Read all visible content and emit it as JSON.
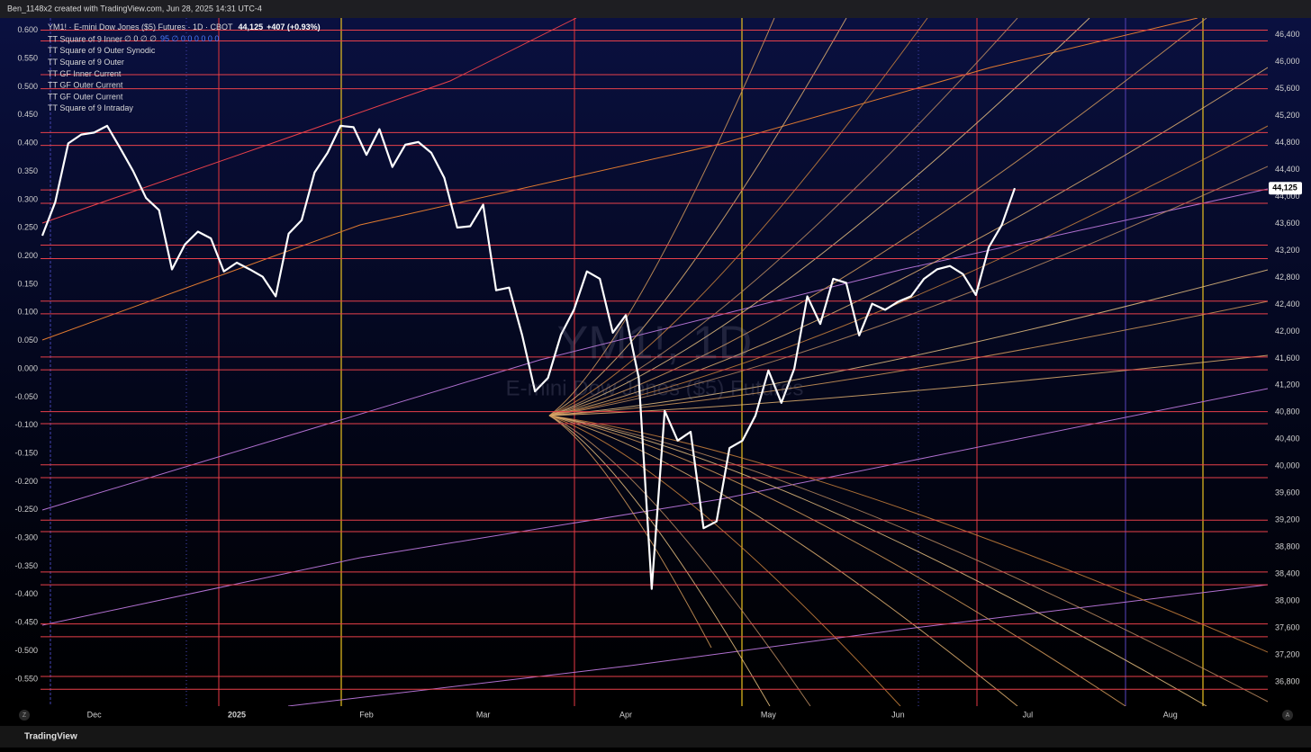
{
  "header": {
    "credit": "Ben_1148x2 created with TradingView.com, Jun 28, 2025 14:31 UTC-4"
  },
  "footer": {
    "brand": "TradingView",
    "left_button": "Z",
    "right_button": "A"
  },
  "chart_data": {
    "type": "line",
    "title": "YM1! · E-mini Dow Jones ($5) Futures · 1D · CBOT",
    "change": "+407 (+0.93%)",
    "last_price": {
      "value": 44125,
      "label": "44,125"
    },
    "watermark": "YM1!, 1D",
    "watermark_subtitle": "E-mini Dow Jones ($5) Futures",
    "indicators": [
      "TT Square of 9 Inner",
      "TT Square of 9 Outer Synodic",
      "TT Square of 9 Outer",
      "TT GF Inner Current",
      "TT GF Outer Current",
      "TT GF Outer Current",
      "TT Square of 9 Intraday"
    ],
    "indicator_values": [
      "∅ 0 ∅ ∅",
      "95 ∅ 0 0 0 0 0 0"
    ],
    "categories": [
      null,
      null,
      null,
      null,
      "Dec",
      null,
      null,
      null,
      null,
      null,
      null,
      null,
      null,
      null,
      null,
      "2025",
      null,
      null,
      null,
      null,
      null,
      null,
      null,
      null,
      null,
      "Feb",
      null,
      null,
      null,
      null,
      null,
      null,
      null,
      null,
      "Mar",
      null,
      null,
      null,
      null,
      null,
      null,
      null,
      null,
      null,
      null,
      "Apr",
      null,
      null,
      null,
      null,
      null,
      null,
      null,
      null,
      null,
      null,
      "May",
      null,
      null,
      null,
      null,
      null,
      null,
      null,
      null,
      null,
      "Jun",
      null,
      null,
      null,
      null,
      null,
      null,
      null,
      null,
      null,
      "Jul",
      null,
      null,
      null,
      null,
      null,
      null,
      null,
      null,
      null,
      null,
      "Aug",
      null,
      null,
      null,
      null,
      null,
      null,
      null
    ],
    "series": [
      {
        "color": "#ffffff",
        "values": [
          43420,
          43920,
          44790,
          44920,
          44950,
          45050,
          44720,
          44380,
          43980,
          43800,
          42920,
          43290,
          43480,
          43380,
          42890,
          43020,
          42920,
          42810,
          42520,
          43450,
          43650,
          44360,
          44650,
          45050,
          45030,
          44620,
          45000,
          44440,
          44770,
          44810,
          44650,
          44280,
          43540,
          43560,
          43880,
          42610,
          42650,
          41950,
          41110,
          41310,
          41950,
          42320,
          42890,
          42780,
          41980,
          42240,
          41310,
          38180,
          40820,
          40380,
          40510,
          39080,
          39180,
          40270,
          40380,
          40750,
          41420,
          40940,
          41450,
          42520,
          42110,
          42780,
          42720,
          41940,
          42410,
          42320,
          42440,
          42520,
          42780,
          42920,
          42970,
          42850,
          42540,
          43250,
          43580,
          44125,
          null,
          null,
          null,
          null,
          null,
          null,
          null,
          null,
          null,
          null,
          null,
          null,
          null,
          null,
          null,
          null,
          null,
          null,
          null
        ]
      }
    ],
    "levels": [
      46470,
      46310,
      45810,
      45600,
      44950,
      44760,
      44100,
      43900,
      43280,
      43080,
      42450,
      42260,
      41620,
      41430,
      40810,
      40630,
      40020,
      39830,
      39200,
      39030,
      38430,
      38240,
      37660,
      37470,
      36880,
      36690
    ],
    "level_color": "#e8404a",
    "grid": false,
    "ylim": [
      36440,
      46650
    ],
    "yticks": [
      {
        "value": 36800,
        "label": "36,800"
      },
      {
        "value": 37200,
        "label": "37,200"
      },
      {
        "value": 37600,
        "label": "37,600"
      },
      {
        "value": 38000,
        "label": "38,000"
      },
      {
        "value": 38400,
        "label": "38,400"
      },
      {
        "value": 38800,
        "label": "38,800"
      },
      {
        "value": 39200,
        "label": "39,200"
      },
      {
        "value": 39600,
        "label": "39,600"
      },
      {
        "value": 40000,
        "label": "40,000"
      },
      {
        "value": 40400,
        "label": "40,400"
      },
      {
        "value": 40800,
        "label": "40,800"
      },
      {
        "value": 41200,
        "label": "41,200"
      },
      {
        "value": 41600,
        "label": "41,600"
      },
      {
        "value": 42000,
        "label": "42,000"
      },
      {
        "value": 42400,
        "label": "42,400"
      },
      {
        "value": 42800,
        "label": "42,800"
      },
      {
        "value": 43200,
        "label": "43,200"
      },
      {
        "value": 43600,
        "label": "43,600"
      },
      {
        "value": 44000,
        "label": "44,000"
      },
      {
        "value": 44400,
        "label": "44,400"
      },
      {
        "value": 44800,
        "label": "44,800"
      },
      {
        "value": 45200,
        "label": "45,200"
      },
      {
        "value": 45600,
        "label": "45,600"
      },
      {
        "value": 46000,
        "label": "46,000"
      },
      {
        "value": 46400,
        "label": "46,400"
      }
    ],
    "y2lim": [
      -0.598,
      0.622
    ],
    "y2ticks": [
      {
        "value": -0.55,
        "label": "-0.550"
      },
      {
        "value": -0.5,
        "label": "-0.500"
      },
      {
        "value": -0.45,
        "label": "-0.450"
      },
      {
        "value": -0.4,
        "label": "-0.400"
      },
      {
        "value": -0.35,
        "label": "-0.350"
      },
      {
        "value": -0.3,
        "label": "-0.300"
      },
      {
        "value": -0.25,
        "label": "-0.250"
      },
      {
        "value": -0.2,
        "label": "-0.200"
      },
      {
        "value": -0.15,
        "label": "-0.150"
      },
      {
        "value": -0.1,
        "label": "-0.100"
      },
      {
        "value": -0.05,
        "label": "-0.050"
      },
      {
        "value": 0,
        "label": "0.000"
      },
      {
        "value": 0.05,
        "label": "0.050"
      },
      {
        "value": 0.1,
        "label": "0.100"
      },
      {
        "value": 0.15,
        "label": "0.150"
      },
      {
        "value": 0.2,
        "label": "0.200"
      },
      {
        "value": 0.25,
        "label": "0.250"
      },
      {
        "value": 0.3,
        "label": "0.300"
      },
      {
        "value": 0.35,
        "label": "0.350"
      },
      {
        "value": 0.4,
        "label": "0.400"
      },
      {
        "value": 0.45,
        "label": "0.450"
      },
      {
        "value": 0.5,
        "label": "0.500"
      },
      {
        "value": 0.55,
        "label": "0.550"
      },
      {
        "value": 0.6,
        "label": "0.600"
      }
    ]
  }
}
